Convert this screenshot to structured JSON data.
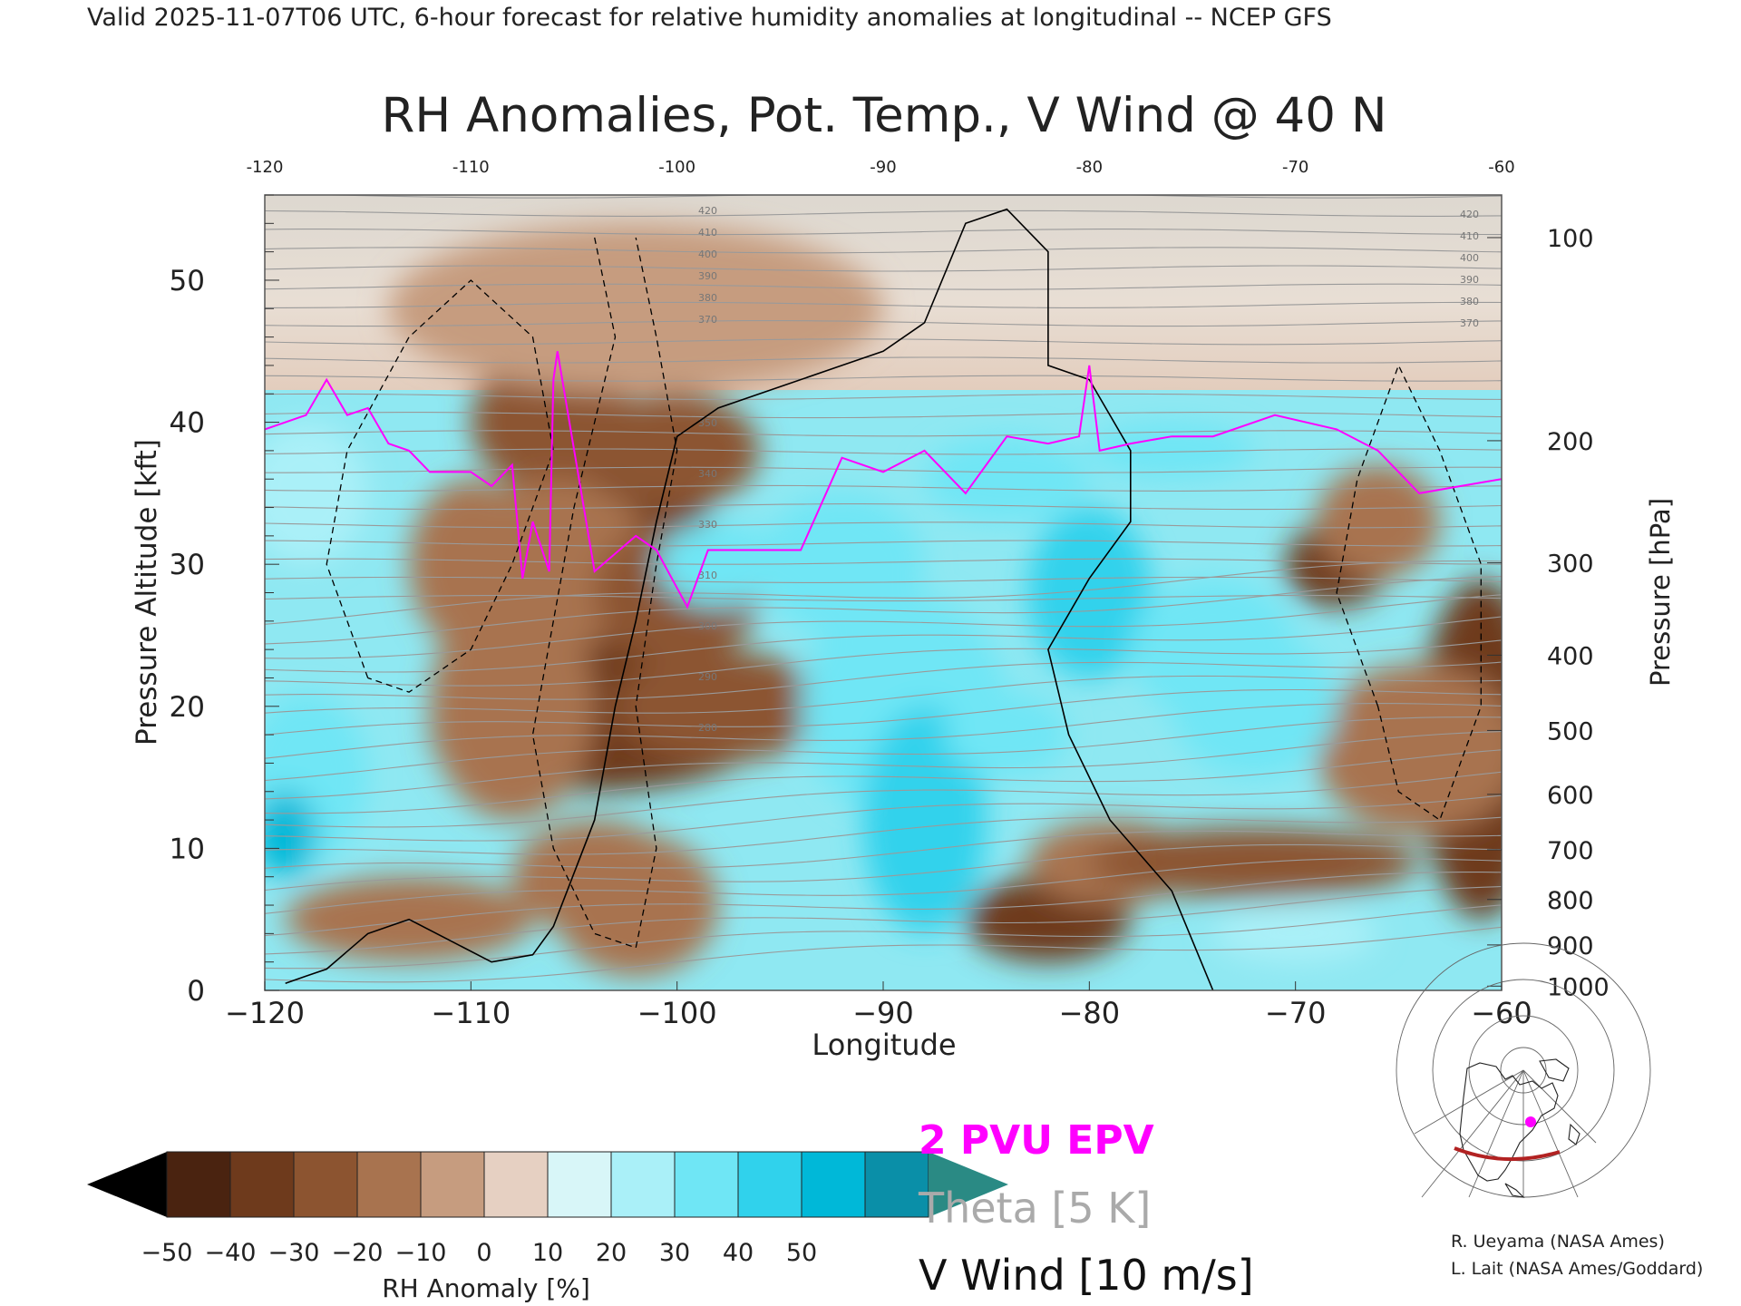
{
  "header": {
    "line": "Valid 2025-11-07T06 UTC, 6-hour forecast for relative humidity anomalies at longitudinal -- NCEP GFS"
  },
  "chart_data": {
    "type": "heatmap",
    "title": "RH Anomalies, Pot. Temp., V Wind @ 40 N",
    "xlabel": "Longitude",
    "ylabel": "Pressure Altitude [kft]",
    "y2label": "Pressure [hPa]",
    "xlim": [
      -120,
      -60
    ],
    "ylim": [
      0,
      56
    ],
    "x_ticks": [
      -120,
      -110,
      -100,
      -90,
      -80,
      -70,
      -60
    ],
    "x_tick_labels": [
      "−120",
      "−110",
      "−100",
      "−90",
      "−80",
      "−70",
      "−60"
    ],
    "top_ticks": [
      -120,
      -110,
      -100,
      -90,
      -80,
      -70,
      -60
    ],
    "y_ticks": [
      0,
      10,
      20,
      30,
      40,
      50
    ],
    "pressure_ticks": [
      {
        "label": "100",
        "kft": 53.0
      },
      {
        "label": "200",
        "kft": 38.7
      },
      {
        "label": "300",
        "kft": 30.1
      },
      {
        "label": "400",
        "kft": 23.6
      },
      {
        "label": "500",
        "kft": 18.3
      },
      {
        "label": "600",
        "kft": 13.8
      },
      {
        "label": "700",
        "kft": 9.9
      },
      {
        "label": "800",
        "kft": 6.4
      },
      {
        "label": "900",
        "kft": 3.2
      },
      {
        "label": "1000",
        "kft": 0.3
      }
    ],
    "rh_anomaly_field": [
      {
        "lon": -103,
        "kft": 35,
        "value": -50,
        "rx": 4.5,
        "ry": 5
      },
      {
        "lon": -103,
        "kft": 28,
        "value": -40,
        "rx": 6,
        "ry": 8
      },
      {
        "lon": -106,
        "kft": 40,
        "value": -35,
        "rx": 4,
        "ry": 5
      },
      {
        "lon": -100,
        "kft": 38,
        "value": -35,
        "rx": 4,
        "ry": 4
      },
      {
        "lon": -104,
        "kft": 18,
        "value": -40,
        "rx": 8,
        "ry": 4
      },
      {
        "lon": -106,
        "kft": 30,
        "value": -20,
        "rx": 5,
        "ry": 6
      },
      {
        "lon": -100,
        "kft": 28,
        "value": -30,
        "rx": 4,
        "ry": 5
      },
      {
        "lon": -98,
        "kft": 20,
        "value": -30,
        "rx": 5,
        "ry": 4
      },
      {
        "lon": -110,
        "kft": 30,
        "value": -20,
        "rx": 3,
        "ry": 6
      },
      {
        "lon": -108,
        "kft": 20,
        "value": -20,
        "rx": 4,
        "ry": 8
      },
      {
        "lon": -113,
        "kft": 5,
        "value": -20,
        "rx": 6,
        "ry": 3
      },
      {
        "lon": -102,
        "kft": 6,
        "value": -25,
        "rx": 4,
        "ry": 5
      },
      {
        "lon": -104,
        "kft": 8,
        "value": -20,
        "rx": 4,
        "ry": 4
      },
      {
        "lon": -82,
        "kft": 5,
        "value": -45,
        "rx": 4,
        "ry": 3
      },
      {
        "lon": -79,
        "kft": 9,
        "value": -20,
        "rx": 4,
        "ry": 3
      },
      {
        "lon": -72,
        "kft": 9,
        "value": -30,
        "rx": 8,
        "ry": 2.5
      },
      {
        "lon": -68,
        "kft": 30,
        "value": -40,
        "rx": 2.5,
        "ry": 3
      },
      {
        "lon": -66,
        "kft": 33,
        "value": -20,
        "rx": 3,
        "ry": 4
      },
      {
        "lon": -61,
        "kft": 17,
        "value": -40,
        "rx": 3,
        "ry": 12
      },
      {
        "lon": -64,
        "kft": 17,
        "value": -25,
        "rx": 5,
        "ry": 6
      },
      {
        "lon": -102,
        "kft": 48,
        "value": -10,
        "rx": 12,
        "ry": 6
      },
      {
        "lon": -118,
        "kft": 35,
        "value": 20,
        "rx": 3,
        "ry": 5
      },
      {
        "lon": -118,
        "kft": 15,
        "value": 30,
        "rx": 3,
        "ry": 6
      },
      {
        "lon": -119,
        "kft": 11,
        "value": 45,
        "rx": 1.5,
        "ry": 3
      },
      {
        "lon": -98,
        "kft": 30,
        "value": 30,
        "rx": 3,
        "ry": 3
      },
      {
        "lon": -92,
        "kft": 30,
        "value": 30,
        "rx": 4,
        "ry": 5
      },
      {
        "lon": -89,
        "kft": 20,
        "value": 30,
        "rx": 5,
        "ry": 8
      },
      {
        "lon": -88,
        "kft": 12,
        "value": 40,
        "rx": 3,
        "ry": 8
      },
      {
        "lon": -84,
        "kft": 18,
        "value": 30,
        "rx": 3,
        "ry": 3
      },
      {
        "lon": -84,
        "kft": 36,
        "value": 30,
        "rx": 4,
        "ry": 3
      },
      {
        "lon": -80,
        "kft": 28,
        "value": 35,
        "rx": 3,
        "ry": 6
      },
      {
        "lon": -76,
        "kft": 38,
        "value": 30,
        "rx": 4,
        "ry": 2
      },
      {
        "lon": -74,
        "kft": 24,
        "value": 30,
        "rx": 4,
        "ry": 5
      },
      {
        "lon": -72,
        "kft": 20,
        "value": 25,
        "rx": 4,
        "ry": 5
      },
      {
        "lon": -70,
        "kft": 4,
        "value": 20,
        "rx": 4,
        "ry": 2
      }
    ],
    "theta_label_values": [
      "420",
      "410",
      "400",
      "390",
      "380",
      "370",
      "350",
      "340",
      "330",
      "310",
      "300",
      "290",
      "280"
    ],
    "epv_2pvu_line": [
      [
        -120,
        39.5
      ],
      [
        -118,
        40.5
      ],
      [
        -117,
        43
      ],
      [
        -116,
        40.5
      ],
      [
        -115,
        41
      ],
      [
        -114,
        38.5
      ],
      [
        -113,
        38
      ],
      [
        -112,
        36.5
      ],
      [
        -110,
        36.5
      ],
      [
        -109,
        35.5
      ],
      [
        -108,
        37
      ],
      [
        -107.5,
        29
      ],
      [
        -107,
        33
      ],
      [
        -106.2,
        29.5
      ],
      [
        -106,
        43
      ],
      [
        -105.8,
        45
      ],
      [
        -104,
        29.5
      ],
      [
        -102,
        32
      ],
      [
        -101,
        31
      ],
      [
        -99.5,
        27
      ],
      [
        -98.5,
        31
      ],
      [
        -96,
        31
      ],
      [
        -94,
        31
      ],
      [
        -92,
        37.5
      ],
      [
        -90,
        36.5
      ],
      [
        -88,
        38
      ],
      [
        -86,
        35
      ],
      [
        -84,
        39
      ],
      [
        -82,
        38.5
      ],
      [
        -80.5,
        39
      ],
      [
        -80,
        44
      ],
      [
        -79.5,
        38
      ],
      [
        -78,
        38.5
      ],
      [
        -76,
        39
      ],
      [
        -74,
        39
      ],
      [
        -71,
        40.5
      ],
      [
        -68,
        39.5
      ],
      [
        -66,
        38
      ],
      [
        -64,
        35
      ],
      [
        -62,
        35.5
      ],
      [
        -60,
        36
      ]
    ],
    "v_wind_zero_line": [
      [
        -119,
        0.5
      ],
      [
        -118,
        1
      ],
      [
        -117,
        1.5
      ],
      [
        -115,
        4
      ],
      [
        -113,
        5
      ],
      [
        -111,
        3.5
      ],
      [
        -109,
        2
      ],
      [
        -107,
        2.5
      ],
      [
        -106,
        4.5
      ],
      [
        -104,
        12
      ],
      [
        -103,
        20
      ],
      [
        -102,
        26
      ],
      [
        -101,
        33
      ],
      [
        -100,
        39
      ],
      [
        -98,
        41
      ],
      [
        -95,
        42.5
      ],
      [
        -92,
        44
      ],
      [
        -90,
        45
      ],
      [
        -88,
        47
      ],
      [
        -86,
        54
      ],
      [
        -84,
        55
      ],
      [
        -82,
        52
      ],
      [
        -82,
        44
      ],
      [
        -80,
        43
      ],
      [
        -78,
        38
      ],
      [
        -78,
        33
      ],
      [
        -80,
        29
      ],
      [
        -82,
        24
      ],
      [
        -81,
        18
      ],
      [
        -79,
        12
      ],
      [
        -76,
        7
      ],
      [
        -74,
        0
      ]
    ],
    "legend": {
      "epv": "2 PVU EPV",
      "theta": "Theta [5 K]",
      "wind": "V Wind [10 m/s]"
    },
    "colorbar": {
      "label": "RH Anomaly [%]",
      "tick_labels": [
        "−50",
        "−40",
        "−30",
        "−20",
        "−10",
        "0",
        "10",
        "20",
        "30",
        "40",
        "50"
      ],
      "colors": [
        "#000000",
        "#4a2310",
        "#6e3a1c",
        "#8c5430",
        "#a8734f",
        "#c69c7f",
        "#e6d0c2",
        "#d8f6f8",
        "#aaf0f8",
        "#6fe6f5",
        "#30d2ec",
        "#00b8d8",
        "#0a8fa8",
        "#2a8a84"
      ]
    },
    "colors": {
      "epv": "#ff00ff",
      "theta": "#999999",
      "wind": "#000000",
      "route": "#b22222"
    }
  },
  "credits": {
    "line1": "R. Ueyama (NASA Ames)",
    "line2": "L. Lait (NASA Ames/Goddard)"
  }
}
